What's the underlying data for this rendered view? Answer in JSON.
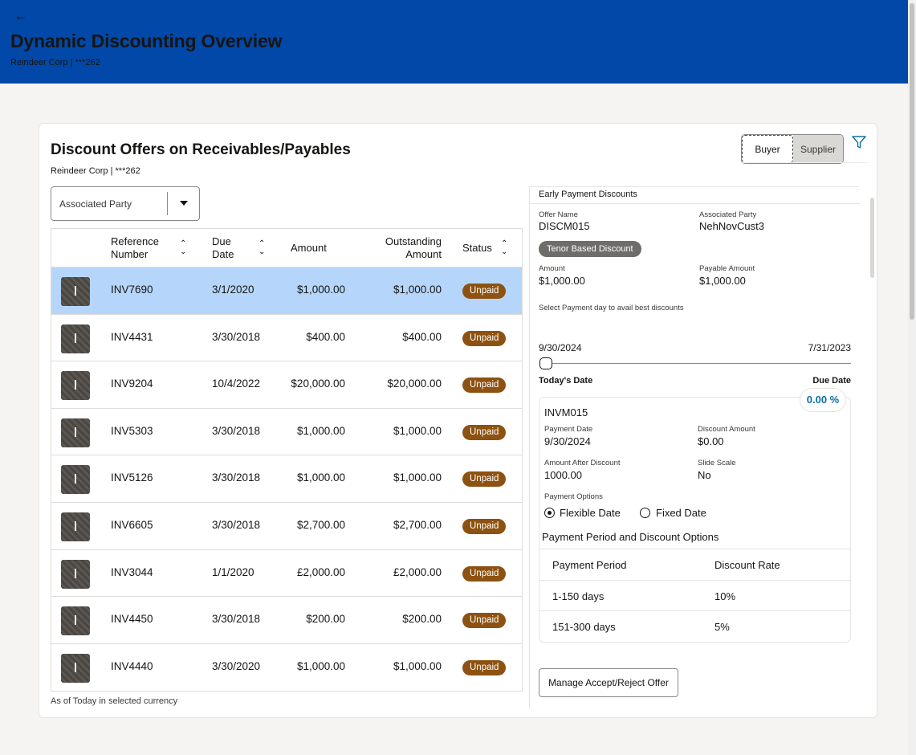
{
  "header": {
    "title": "Dynamic Discounting Overview",
    "subtitle": "Reindeer Corp | ***262"
  },
  "card": {
    "title": "Discount Offers on Receivables/Payables",
    "subtitle": "Reindeer Corp | ***262",
    "toggle": {
      "buyer": "Buyer",
      "supplier": "Supplier",
      "active": "Buyer"
    },
    "dropdown_label": "Associated Party",
    "footnote": "As of Today in selected currency"
  },
  "table": {
    "headers": {
      "ref_line1": "Reference",
      "ref_line2": "Number",
      "due_line1": "Due",
      "due_line2": "Date",
      "amount": "Amount",
      "out_line1": "Outstanding",
      "out_line2": "Amount",
      "status": "Status"
    },
    "rows": [
      {
        "ref": "INV7690",
        "due": "3/1/2020",
        "amount": "$1,000.00",
        "outstanding": "$1,000.00",
        "status": "Unpaid"
      },
      {
        "ref": "INV4431",
        "due": "3/30/2018",
        "amount": "$400.00",
        "outstanding": "$400.00",
        "status": "Unpaid"
      },
      {
        "ref": "INV9204",
        "due": "10/4/2022",
        "amount": "$20,000.00",
        "outstanding": "$20,000.00",
        "status": "Unpaid"
      },
      {
        "ref": "INV5303",
        "due": "3/30/2018",
        "amount": "$1,000.00",
        "outstanding": "$1,000.00",
        "status": "Unpaid"
      },
      {
        "ref": "INV5126",
        "due": "3/30/2018",
        "amount": "$1,000.00",
        "outstanding": "$1,000.00",
        "status": "Unpaid"
      },
      {
        "ref": "INV6605",
        "due": "3/30/2018",
        "amount": "$2,700.00",
        "outstanding": "$2,700.00",
        "status": "Unpaid"
      },
      {
        "ref": "INV3044",
        "due": "1/1/2020",
        "amount": "£2,000.00",
        "outstanding": "£2,000.00",
        "status": "Unpaid"
      },
      {
        "ref": "INV4450",
        "due": "3/30/2018",
        "amount": "$200.00",
        "outstanding": "$200.00",
        "status": "Unpaid"
      },
      {
        "ref": "INV4440",
        "due": "3/30/2020",
        "amount": "$1,000.00",
        "outstanding": "$1,000.00",
        "status": "Unpaid"
      }
    ]
  },
  "panel": {
    "title": "Early Payment Discounts",
    "offer_name_label": "Offer Name",
    "offer_name": "DISCM015",
    "associated_party_label": "Associated Party",
    "associated_party": "NehNovCust3",
    "tenor_badge": "Tenor Based Discount",
    "amount_label": "Amount",
    "amount": "$1,000.00",
    "payable_label": "Payable Amount",
    "payable": "$1,000.00",
    "select_day_text": "Select Payment day to avail best discounts",
    "slider_start": "9/30/2024",
    "slider_end": "7/31/2023",
    "today_label": "Today's Date",
    "due_label": "Due Date",
    "discount_pct": "0.00 %",
    "invoice": "INVM015",
    "payment_date_label": "Payment Date",
    "payment_date": "9/30/2024",
    "discount_amount_label": "Discount Amount",
    "discount_amount": "$0.00",
    "after_discount_label": "Amount After Discount",
    "after_discount": "1000.00",
    "slide_scale_label": "Slide Scale",
    "slide_scale": "No",
    "payment_options_label": "Payment Options",
    "option_flexible": "Flexible Date",
    "option_fixed": "Fixed Date",
    "period_section_title": "Payment Period and Discount Options",
    "period_headers": {
      "period": "Payment Period",
      "rate": "Discount Rate"
    },
    "periods": [
      {
        "period": "1-150 days",
        "rate": "10%"
      },
      {
        "period": "151-300 days",
        "rate": "5%"
      }
    ],
    "manage_button": "Manage Accept/Reject Offer"
  },
  "icons": {
    "back": "arrow-left-icon",
    "filter": "funnel-icon",
    "sort": "sort-updown-icon"
  },
  "colors": {
    "header_bg": "#0148a8",
    "selected_row": "#b5d6fa",
    "unpaid_badge": "#8d5211",
    "pct_text": "#0e6ea4"
  }
}
